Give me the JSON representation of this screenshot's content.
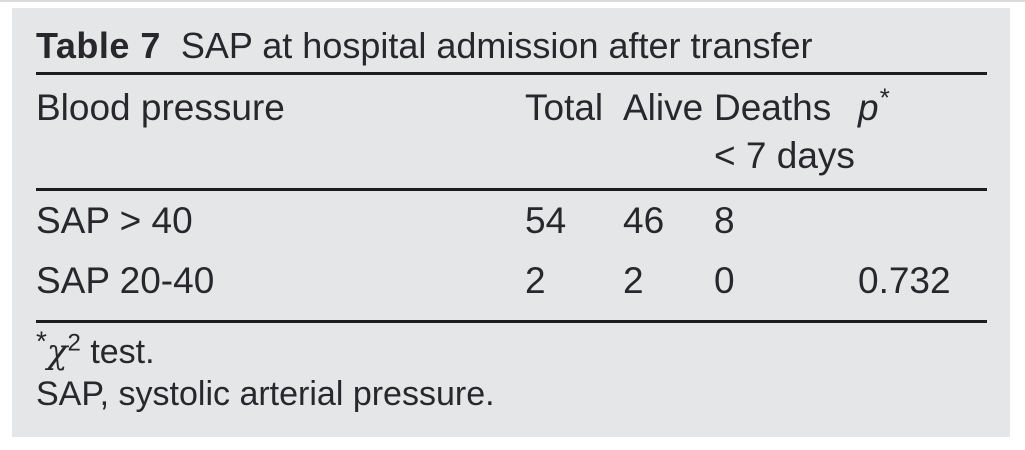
{
  "colors": {
    "panel_bg": "#e5e6e8",
    "text": "#28272b",
    "rule": "#1d1d1f",
    "page_bg": "#ffffff"
  },
  "table": {
    "title_label": "Table 7",
    "title_text": "SAP at hospital admission after transfer",
    "header": {
      "blood_pressure": "Blood pressure",
      "total": "Total",
      "alive": "Alive",
      "deaths_line1": "Deaths",
      "deaths_line2": "< 7 days",
      "p": "p",
      "p_sup": "*"
    },
    "rows": [
      {
        "label": "SAP > 40",
        "total": "54",
        "alive": "46",
        "deaths": "8",
        "p": ""
      },
      {
        "label": "SAP 20-40",
        "total": "2",
        "alive": "2",
        "deaths": "0",
        "p": "0.732"
      }
    ],
    "footnotes": {
      "star": "*",
      "chi": "χ",
      "chi_sup": "2",
      "test_text": " test.",
      "abbreviation": "SAP, systolic arterial pressure."
    }
  }
}
